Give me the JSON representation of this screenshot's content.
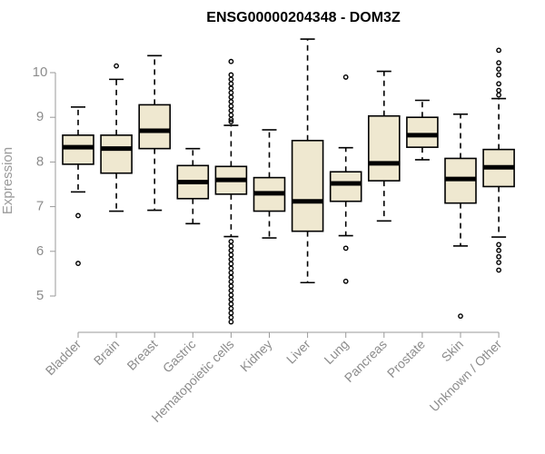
{
  "chart_data": {
    "type": "box",
    "title": "ENSG00000204348 - DOM3Z",
    "ylabel": "Expression",
    "xlabel": "",
    "ylim": [
      4.3,
      10.9
    ],
    "yticks": [
      5,
      6,
      7,
      8,
      9,
      10
    ],
    "box_fill": "#efe8d0",
    "categories": [
      "Bladder",
      "Brain",
      "Breast",
      "Gastric",
      "Hematopoietic cells",
      "Kidney",
      "Liver",
      "Lung",
      "Pancreas",
      "Prostate",
      "Skin",
      "Unknown / Other"
    ],
    "boxes": [
      {
        "whisker_low": 7.33,
        "q1": 7.95,
        "median": 8.33,
        "q3": 8.6,
        "whisker_high": 9.23,
        "outliers": [
          6.8,
          5.73
        ]
      },
      {
        "whisker_low": 6.9,
        "q1": 7.75,
        "median": 8.3,
        "q3": 8.6,
        "whisker_high": 9.85,
        "outliers": [
          10.15
        ]
      },
      {
        "whisker_low": 6.92,
        "q1": 8.3,
        "median": 8.7,
        "q3": 9.28,
        "whisker_high": 10.38,
        "outliers": []
      },
      {
        "whisker_low": 6.62,
        "q1": 7.18,
        "median": 7.55,
        "q3": 7.92,
        "whisker_high": 8.3,
        "outliers": []
      },
      {
        "whisker_low": 6.33,
        "q1": 7.28,
        "median": 7.6,
        "q3": 7.9,
        "whisker_high": 8.82,
        "outliers": [
          10.25,
          9.95,
          9.85,
          9.75,
          9.65,
          9.55,
          9.45,
          9.35,
          9.25,
          9.15,
          9.05,
          8.95,
          8.9,
          6.22,
          6.12,
          6.02,
          5.92,
          5.82,
          5.72,
          5.62,
          5.52,
          5.42,
          5.32,
          5.22,
          5.12,
          5.02,
          4.92,
          4.82,
          4.72,
          4.62,
          4.52,
          4.42
        ]
      },
      {
        "whisker_low": 6.3,
        "q1": 6.9,
        "median": 7.3,
        "q3": 7.65,
        "whisker_high": 8.72,
        "outliers": []
      },
      {
        "whisker_low": 5.3,
        "q1": 6.45,
        "median": 7.12,
        "q3": 8.48,
        "whisker_high": 10.75,
        "outliers": []
      },
      {
        "whisker_low": 6.35,
        "q1": 7.12,
        "median": 7.52,
        "q3": 7.78,
        "whisker_high": 8.32,
        "outliers": [
          9.9,
          6.07,
          5.33
        ]
      },
      {
        "whisker_low": 6.68,
        "q1": 7.58,
        "median": 7.97,
        "q3": 9.03,
        "whisker_high": 10.03,
        "outliers": []
      },
      {
        "whisker_low": 8.05,
        "q1": 8.33,
        "median": 8.6,
        "q3": 9.0,
        "whisker_high": 9.38,
        "outliers": []
      },
      {
        "whisker_low": 6.12,
        "q1": 7.08,
        "median": 7.62,
        "q3": 8.08,
        "whisker_high": 9.07,
        "outliers": [
          4.55
        ]
      },
      {
        "whisker_low": 6.32,
        "q1": 7.45,
        "median": 7.88,
        "q3": 8.28,
        "whisker_high": 9.42,
        "outliers": [
          10.5,
          10.22,
          10.08,
          9.95,
          9.75,
          9.6,
          9.5,
          6.15,
          6.02,
          5.88,
          5.75,
          5.58
        ]
      }
    ]
  }
}
